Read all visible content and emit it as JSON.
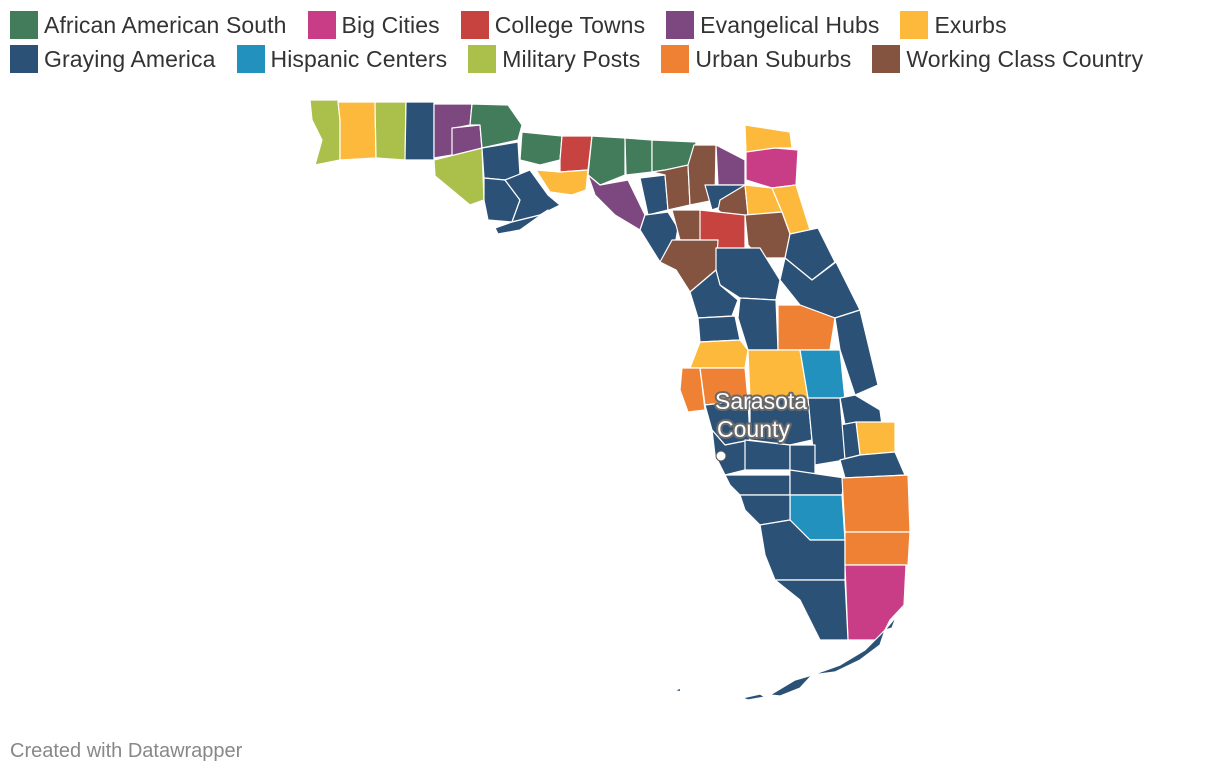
{
  "legend": [
    {
      "label": "African American South",
      "color": "#437c5b"
    },
    {
      "label": "Big Cities",
      "color": "#c93d87"
    },
    {
      "label": "College Towns",
      "color": "#c6433f"
    },
    {
      "label": "Evangelical Hubs",
      "color": "#7d4780"
    },
    {
      "label": "Exurbs",
      "color": "#fcb93b"
    },
    {
      "label": "Graying America",
      "color": "#2c5177"
    },
    {
      "label": "Hispanic Centers",
      "color": "#2391bd"
    },
    {
      "label": "Military Posts",
      "color": "#abc04a"
    },
    {
      "label": "Urban Suburbs",
      "color": "#ee8133"
    },
    {
      "label": "Working Class Country",
      "color": "#855440"
    }
  ],
  "map": {
    "state": "Florida",
    "highlighted_county": "Sarasota County",
    "highlight_category": "Graying America",
    "callout_lines": [
      "Sarasota",
      "County"
    ]
  },
  "footer": "Created with Datawrapper"
}
